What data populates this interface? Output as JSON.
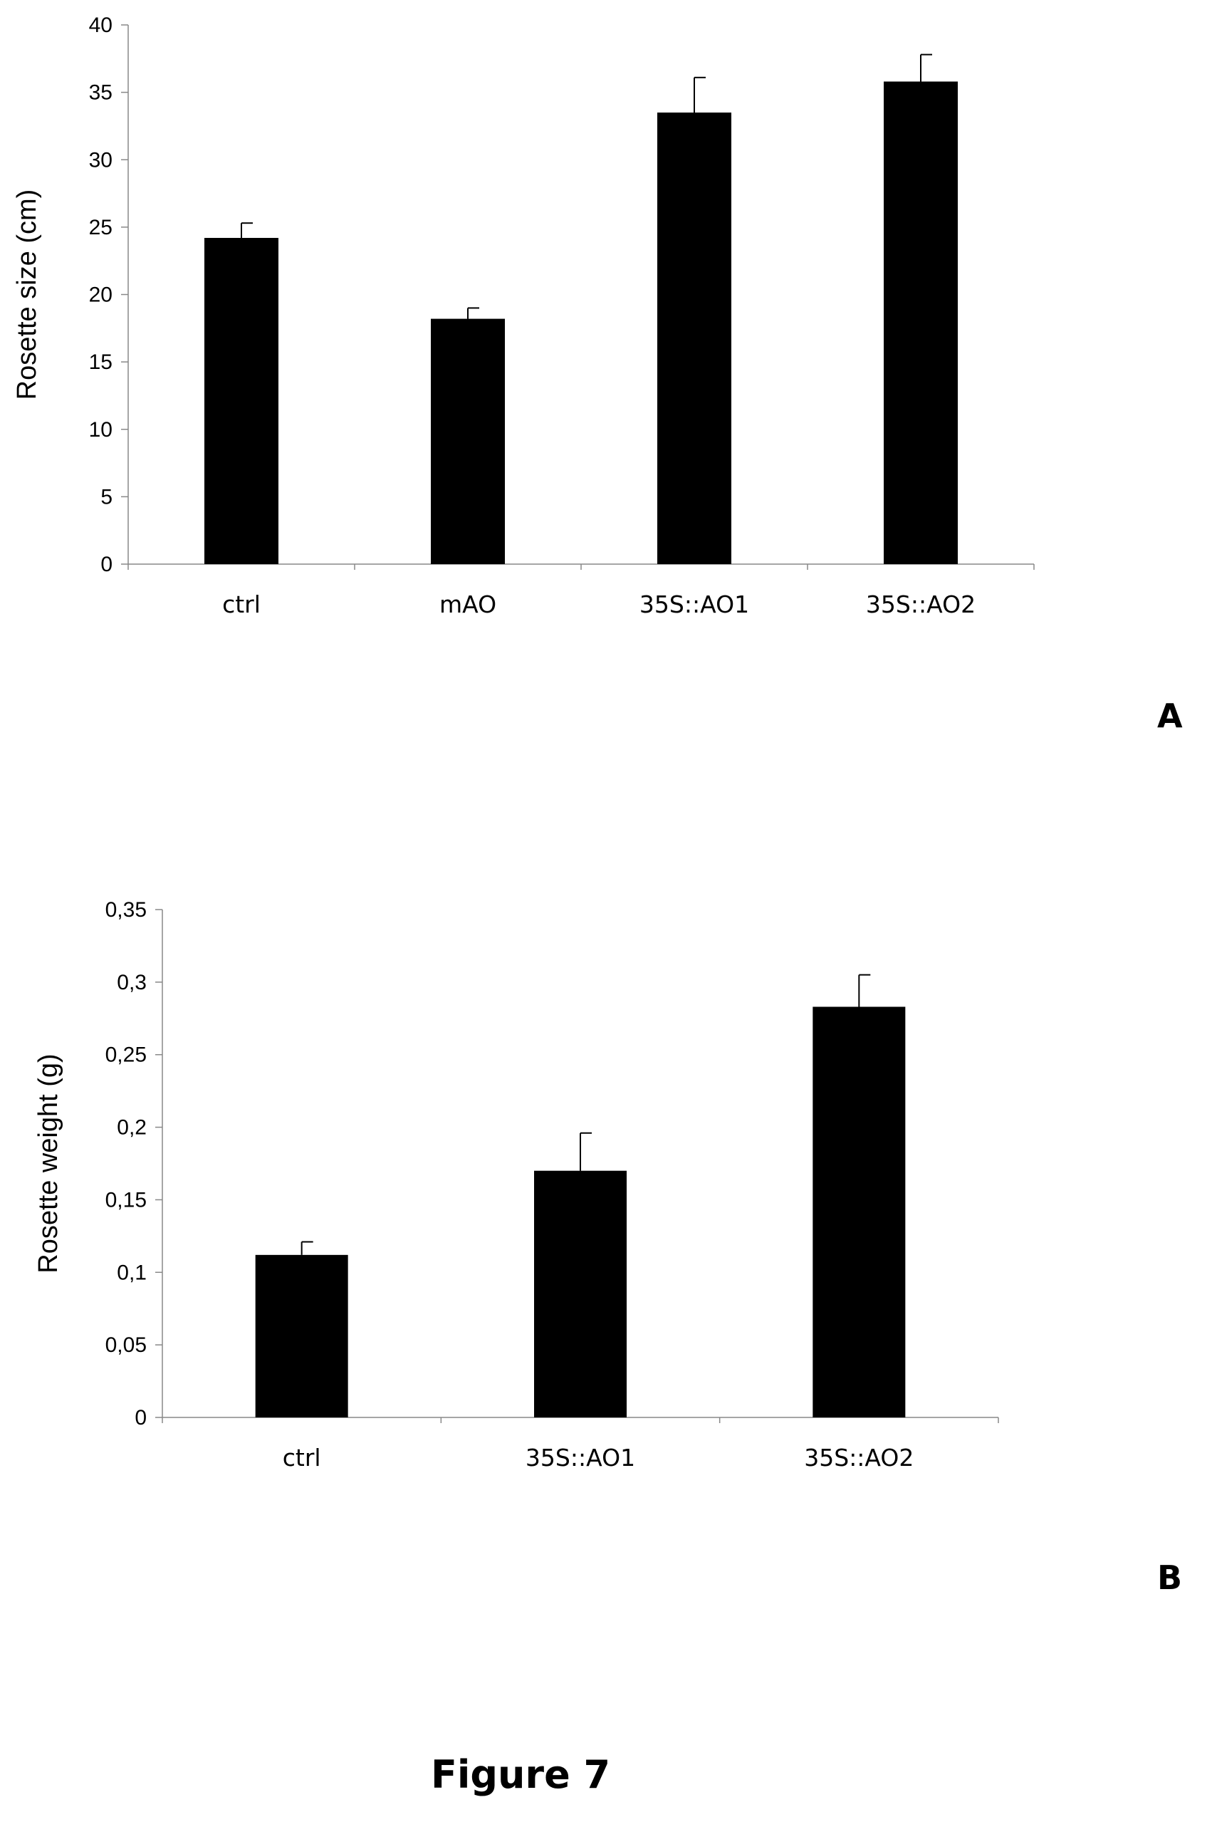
{
  "figure": {
    "caption": "Figure 7"
  },
  "chart_data": [
    {
      "panel": "A",
      "type": "bar",
      "categories": [
        "ctrl",
        "mAO",
        "35S::AO1",
        "35S::AO2"
      ],
      "values": [
        24.2,
        18.2,
        33.5,
        35.8
      ],
      "error": [
        1.1,
        0.8,
        2.6,
        2.0
      ],
      "xlabel": "",
      "ylabel": "Rosette size (cm)",
      "ylim": [
        0,
        40
      ],
      "yticks": [
        0,
        5,
        10,
        15,
        20,
        25,
        30,
        35,
        40
      ],
      "ytick_labels": [
        "0",
        "5",
        "10",
        "15",
        "20",
        "25",
        "30",
        "35",
        "40"
      ],
      "bar_color": "#000000",
      "grid": false
    },
    {
      "panel": "B",
      "type": "bar",
      "categories": [
        "ctrl",
        "35S::AO1",
        "35S::AO2"
      ],
      "values": [
        0.112,
        0.17,
        0.283
      ],
      "error": [
        0.009,
        0.026,
        0.022
      ],
      "xlabel": "",
      "ylabel": "Rosette weight (g)",
      "ylim": [
        0,
        0.35
      ],
      "yticks": [
        0,
        0.05,
        0.1,
        0.15,
        0.2,
        0.25,
        0.3,
        0.35
      ],
      "ytick_labels": [
        "0",
        "0,05",
        "0,1",
        "0,15",
        "0,2",
        "0,25",
        "0,3",
        "0,35"
      ],
      "bar_color": "#000000",
      "grid": false
    }
  ]
}
